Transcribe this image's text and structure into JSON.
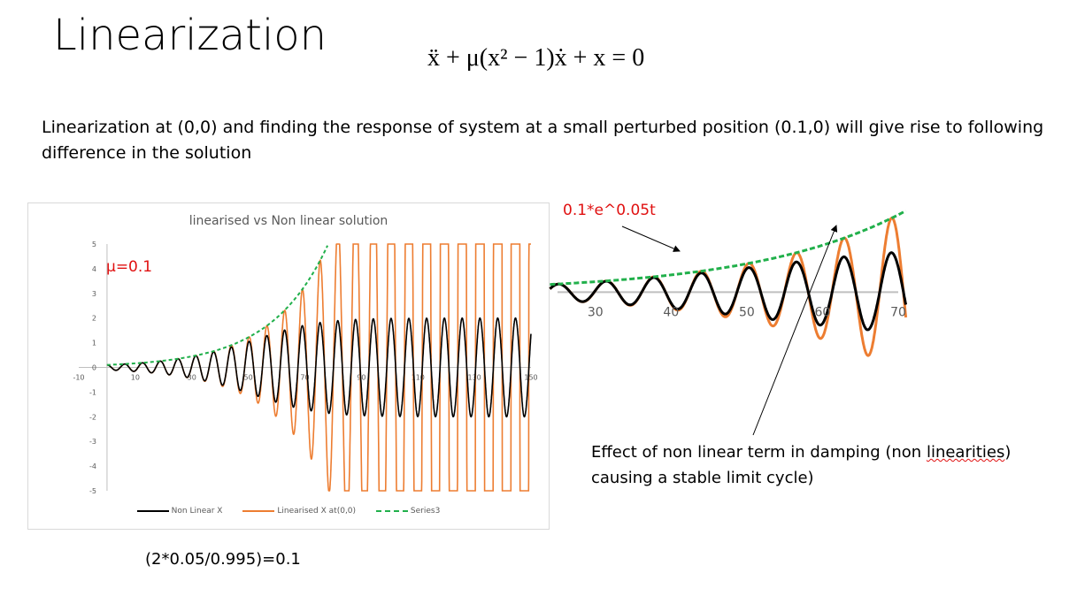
{
  "slide": {
    "title": "Linearization",
    "equation": "ẍ + μ(x² − 1)ẋ + x = 0",
    "description": "Linearization at (0,0) and finding the response of system at a small perturbed position (0.1,0) will give rise to following difference in the solution",
    "mu_label": "μ=0.1",
    "exp_label": "0.1*e^0.05t",
    "effect_note_pre": "Effect of non linear term in damping (non ",
    "effect_note_squiggle": "linearities",
    "effect_note_post": ") causing a stable limit cycle)",
    "bottom_formula": "(2*0.05/0.995)=0.1"
  },
  "colors": {
    "nonlinear": "#000000",
    "linearised": "#ed7d31",
    "series3": "#21b04b",
    "annotation_red": "#e01010",
    "axis": "#bfbfbf",
    "tick_text": "#595959"
  },
  "chart_data": [
    {
      "type": "line",
      "title": "linearised vs Non linear solution",
      "xlim": [
        -10,
        150
      ],
      "ylim": [
        -5,
        5
      ],
      "x_ticks": [
        -10,
        10,
        30,
        50,
        70,
        90,
        110,
        130,
        150
      ],
      "y_ticks": [
        5,
        4,
        3,
        2,
        1,
        0,
        -1,
        -2,
        -3,
        -4,
        -5
      ],
      "x_tick_labels": [
        "-10",
        "10",
        "30",
        "50",
        "70",
        "90",
        "110",
        "130",
        "150"
      ],
      "y_tick_labels": [
        "5",
        "4",
        "3",
        "2",
        "1",
        "0",
        "-1",
        "-2",
        "-3",
        "-4",
        "-5"
      ],
      "legend_position": "bottom",
      "series": [
        {
          "name": "Non Linear X",
          "model": "van der Pol mu=0.1, x0=0.1",
          "color": "#000000",
          "t_range": [
            0,
            150
          ],
          "limit_cycle_amplitude": 2
        },
        {
          "name": "Linearised X at(0,0)",
          "model": "0.1*e^0.05t*cos(t)",
          "color": "#ed7d31",
          "t_range": [
            0,
            150
          ]
        },
        {
          "name": "Series3",
          "model": "0.1*e^0.05t",
          "color": "#21b04b",
          "t_range": [
            0,
            80
          ]
        }
      ]
    },
    {
      "type": "line",
      "title": "",
      "xlim": [
        25,
        70
      ],
      "x_ticks": [
        30,
        40,
        50,
        60,
        70
      ],
      "x_tick_labels": [
        "30",
        "40",
        "50",
        "60",
        "70"
      ],
      "series_ref": "zoomed view of the same three series"
    }
  ]
}
